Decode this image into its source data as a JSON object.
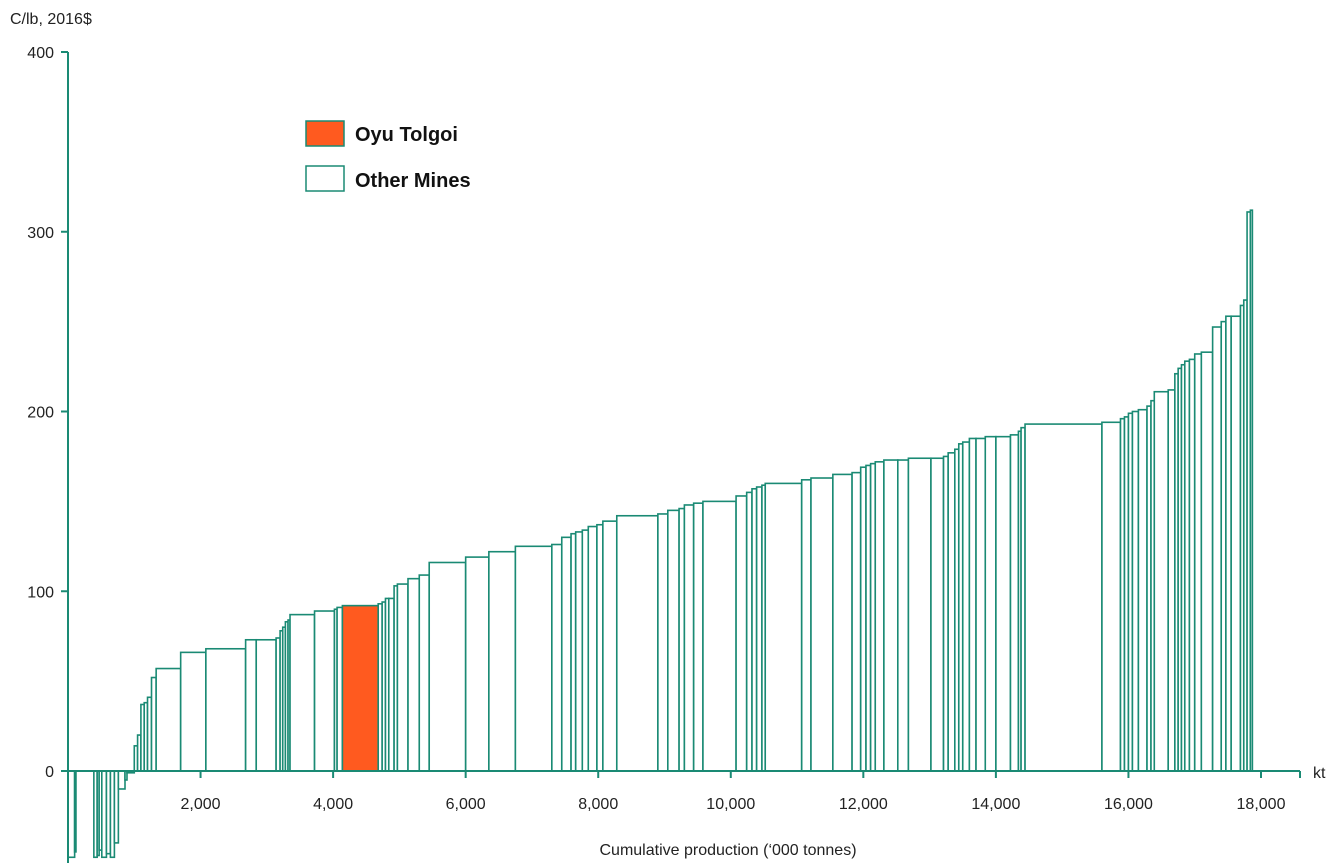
{
  "chart_data": {
    "type": "bar",
    "subtype": "cost-curve",
    "y_unit_label": "C/lb, 2016$",
    "x_unit_label": "kt",
    "xlabel": "Cumulative production (‘000 tonnes)",
    "xlim": [
      0,
      18000
    ],
    "ylim": [
      -50,
      400
    ],
    "x_ticks": [
      {
        "value": 2000,
        "label": "2,000"
      },
      {
        "value": 4000,
        "label": "4,000"
      },
      {
        "value": 6000,
        "label": "6,000"
      },
      {
        "value": 8000,
        "label": "8,000"
      },
      {
        "value": 10000,
        "label": "10,000"
      },
      {
        "value": 12000,
        "label": "12,000"
      },
      {
        "value": 14000,
        "label": "14,000"
      },
      {
        "value": 16000,
        "label": "16,000"
      },
      {
        "value": 18000,
        "label": "18,000"
      }
    ],
    "y_ticks": [
      {
        "value": 0,
        "label": "0"
      },
      {
        "value": 100,
        "label": "100"
      },
      {
        "value": 200,
        "label": "200"
      },
      {
        "value": 300,
        "label": "300"
      },
      {
        "value": 400,
        "label": "400"
      }
    ],
    "grid": false,
    "legend": {
      "position": "top-left",
      "entries": [
        {
          "label": "Oyu Tolgoi",
          "color": "#ff5a1f",
          "series": "highlight"
        },
        {
          "label": "Other Mines",
          "color": "#ffffff",
          "series": "other"
        }
      ]
    },
    "colors": {
      "outline": "#1a8a74",
      "highlight": "#ff5a1f",
      "other_fill": "#ffffff"
    },
    "series": [
      {
        "name": "Other Mines",
        "style": "other",
        "bars": [
          [
            0,
            100,
            -48
          ],
          [
            100,
            120,
            -45
          ],
          [
            390,
            440,
            -48
          ],
          [
            440,
            470,
            -47
          ],
          [
            470,
            510,
            -44
          ],
          [
            510,
            580,
            -48
          ],
          [
            580,
            640,
            -46
          ],
          [
            640,
            700,
            -48
          ],
          [
            700,
            760,
            -40
          ],
          [
            760,
            860,
            -10
          ],
          [
            860,
            890,
            -5
          ],
          [
            890,
            1000,
            -1
          ],
          [
            1000,
            1050,
            14
          ],
          [
            1050,
            1100,
            20
          ],
          [
            1100,
            1150,
            37
          ],
          [
            1150,
            1200,
            38
          ],
          [
            1200,
            1260,
            41
          ],
          [
            1260,
            1330,
            52
          ],
          [
            1330,
            1700,
            57
          ],
          [
            1700,
            2080,
            66
          ],
          [
            2080,
            2680,
            68
          ],
          [
            2680,
            2840,
            73
          ],
          [
            2840,
            3140,
            73
          ],
          [
            3140,
            3200,
            74
          ],
          [
            3200,
            3240,
            78
          ],
          [
            3240,
            3280,
            80
          ],
          [
            3280,
            3320,
            83
          ],
          [
            3320,
            3350,
            84
          ],
          [
            3350,
            3720,
            87
          ],
          [
            3720,
            4020,
            89
          ],
          [
            4020,
            4060,
            90
          ],
          [
            4060,
            4140,
            91
          ],
          [
            4680,
            4740,
            93
          ],
          [
            4740,
            4790,
            94
          ],
          [
            4790,
            4840,
            96
          ],
          [
            4840,
            4920,
            96
          ],
          [
            4920,
            4970,
            103
          ],
          [
            4970,
            5130,
            104
          ],
          [
            5130,
            5300,
            107
          ],
          [
            5300,
            5450,
            109
          ],
          [
            5450,
            6000,
            116
          ],
          [
            6000,
            6350,
            119
          ],
          [
            6350,
            6750,
            122
          ],
          [
            6750,
            7300,
            125
          ],
          [
            7300,
            7450,
            126
          ],
          [
            7450,
            7590,
            130
          ],
          [
            7590,
            7660,
            132
          ],
          [
            7660,
            7760,
            133
          ],
          [
            7760,
            7850,
            134
          ],
          [
            7850,
            7980,
            136
          ],
          [
            7980,
            8070,
            137
          ],
          [
            8070,
            8280,
            139
          ],
          [
            8280,
            8900,
            142
          ],
          [
            8900,
            9050,
            143
          ],
          [
            9050,
            9220,
            145
          ],
          [
            9220,
            9300,
            146
          ],
          [
            9300,
            9440,
            148
          ],
          [
            9440,
            9580,
            149
          ],
          [
            9580,
            10080,
            150
          ],
          [
            10080,
            10240,
            153
          ],
          [
            10240,
            10320,
            155
          ],
          [
            10320,
            10390,
            157
          ],
          [
            10390,
            10470,
            158
          ],
          [
            10470,
            10520,
            159
          ],
          [
            10520,
            11070,
            160
          ],
          [
            11070,
            11210,
            162
          ],
          [
            11210,
            11540,
            163
          ],
          [
            11540,
            11830,
            165
          ],
          [
            11830,
            11960,
            166
          ],
          [
            11960,
            12040,
            169
          ],
          [
            12040,
            12110,
            170
          ],
          [
            12110,
            12180,
            171
          ],
          [
            12180,
            12310,
            172
          ],
          [
            12310,
            12520,
            173
          ],
          [
            12520,
            12680,
            173
          ],
          [
            12680,
            13020,
            174
          ],
          [
            13020,
            13210,
            174
          ],
          [
            13210,
            13280,
            175
          ],
          [
            13280,
            13380,
            177
          ],
          [
            13380,
            13440,
            179
          ],
          [
            13440,
            13500,
            182
          ],
          [
            13500,
            13600,
            183
          ],
          [
            13600,
            13700,
            185
          ],
          [
            13700,
            13840,
            185
          ],
          [
            13840,
            14000,
            186
          ],
          [
            14000,
            14220,
            186
          ],
          [
            14220,
            14340,
            187
          ],
          [
            14340,
            14380,
            189
          ],
          [
            14380,
            14440,
            191
          ],
          [
            14440,
            15600,
            193
          ],
          [
            15600,
            15880,
            194
          ],
          [
            15880,
            15940,
            196
          ],
          [
            15940,
            16000,
            197
          ],
          [
            16000,
            16060,
            199
          ],
          [
            16060,
            16150,
            200
          ],
          [
            16150,
            16280,
            201
          ],
          [
            16280,
            16340,
            203
          ],
          [
            16340,
            16390,
            206
          ],
          [
            16390,
            16600,
            211
          ],
          [
            16600,
            16700,
            212
          ],
          [
            16700,
            16750,
            221
          ],
          [
            16750,
            16800,
            224
          ],
          [
            16800,
            16850,
            226
          ],
          [
            16850,
            16920,
            228
          ],
          [
            16920,
            17000,
            229
          ],
          [
            17000,
            17100,
            232
          ],
          [
            17100,
            17270,
            233
          ],
          [
            17270,
            17400,
            247
          ],
          [
            17400,
            17470,
            250
          ],
          [
            17470,
            17550,
            253
          ],
          [
            17550,
            17690,
            253
          ],
          [
            17690,
            17740,
            259
          ],
          [
            17740,
            17790,
            262
          ],
          [
            17790,
            17840,
            311
          ],
          [
            17840,
            17870,
            312
          ]
        ]
      },
      {
        "name": "Oyu Tolgoi",
        "style": "highlight",
        "bars": [
          [
            4140,
            4680,
            92
          ]
        ]
      }
    ]
  }
}
